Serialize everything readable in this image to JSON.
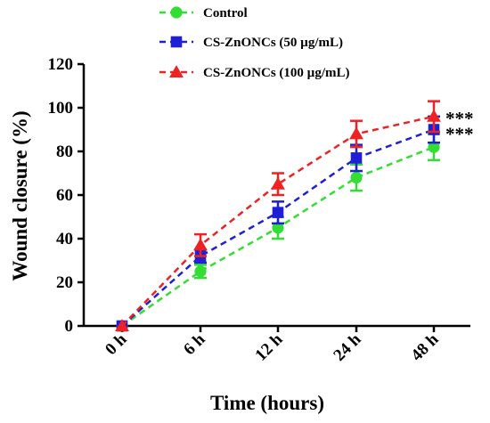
{
  "chart_data": {
    "type": "line",
    "title": "",
    "xlabel": "Time (hours)",
    "ylabel": "Wound closure (%)",
    "categories": [
      "0 h",
      "6 h",
      "12 h",
      "24 h",
      "48 h"
    ],
    "ylim": [
      0,
      120
    ],
    "yticks": [
      0,
      20,
      40,
      60,
      80,
      100,
      120
    ],
    "grid": false,
    "legend_position": "top",
    "series": [
      {
        "name": "Control",
        "color": "#33dd33",
        "marker": "circle",
        "values": [
          0,
          25,
          45,
          68,
          82
        ],
        "errors": [
          0,
          3,
          5,
          6,
          6
        ]
      },
      {
        "name": "CS-ZnONCs (50 µg/mL)",
        "color": "#1f1fd6",
        "marker": "square",
        "values": [
          0,
          32,
          52,
          77,
          90
        ],
        "errors": [
          0,
          3,
          5,
          6,
          6
        ]
      },
      {
        "name": "CS-ZnONCs (100 µg/mL)",
        "color": "#ee2222",
        "marker": "triangle",
        "values": [
          0,
          37,
          65,
          88,
          96
        ],
        "errors": [
          0,
          5,
          5,
          6,
          7
        ]
      }
    ],
    "annotations": [
      "***",
      "***"
    ]
  }
}
